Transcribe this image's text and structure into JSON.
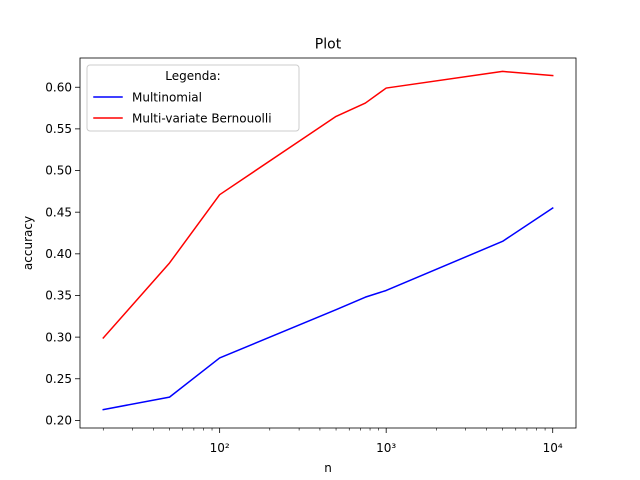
{
  "chart_data": {
    "type": "line",
    "title": "Plot",
    "xlabel": "n",
    "ylabel": "accuracy",
    "x_scale": "log",
    "xlim": [
      14.5,
      13800
    ],
    "ylim": [
      0.2,
      0.6
    ],
    "grid": false,
    "legend": {
      "title": "Legenda:",
      "placement": "top-left"
    },
    "x_ticks": [
      {
        "value": 100,
        "label": "10²"
      },
      {
        "value": 1000,
        "label": "10³"
      },
      {
        "value": 10000,
        "label": "10⁴"
      }
    ],
    "y_ticks": [
      {
        "value": 0.2,
        "label": "0.20"
      },
      {
        "value": 0.25,
        "label": "0.25"
      },
      {
        "value": 0.3,
        "label": "0.30"
      },
      {
        "value": 0.35,
        "label": "0.35"
      },
      {
        "value": 0.4,
        "label": "0.40"
      },
      {
        "value": 0.45,
        "label": "0.45"
      },
      {
        "value": 0.5,
        "label": "0.50"
      },
      {
        "value": 0.55,
        "label": "0.55"
      },
      {
        "value": 0.6,
        "label": "0.60"
      }
    ],
    "x": [
      20,
      50,
      100,
      500,
      750,
      1000,
      5000,
      10000
    ],
    "series": [
      {
        "name": "Multinomial",
        "color": "#0000ff",
        "values": [
          0.213,
          0.228,
          0.275,
          0.333,
          0.348,
          0.356,
          0.415,
          0.455
        ]
      },
      {
        "name": "Multi-variate Bernouolli",
        "color": "#ff0000",
        "values": [
          0.299,
          0.389,
          0.471,
          0.565,
          0.581,
          0.599,
          0.619,
          0.614
        ]
      }
    ]
  }
}
